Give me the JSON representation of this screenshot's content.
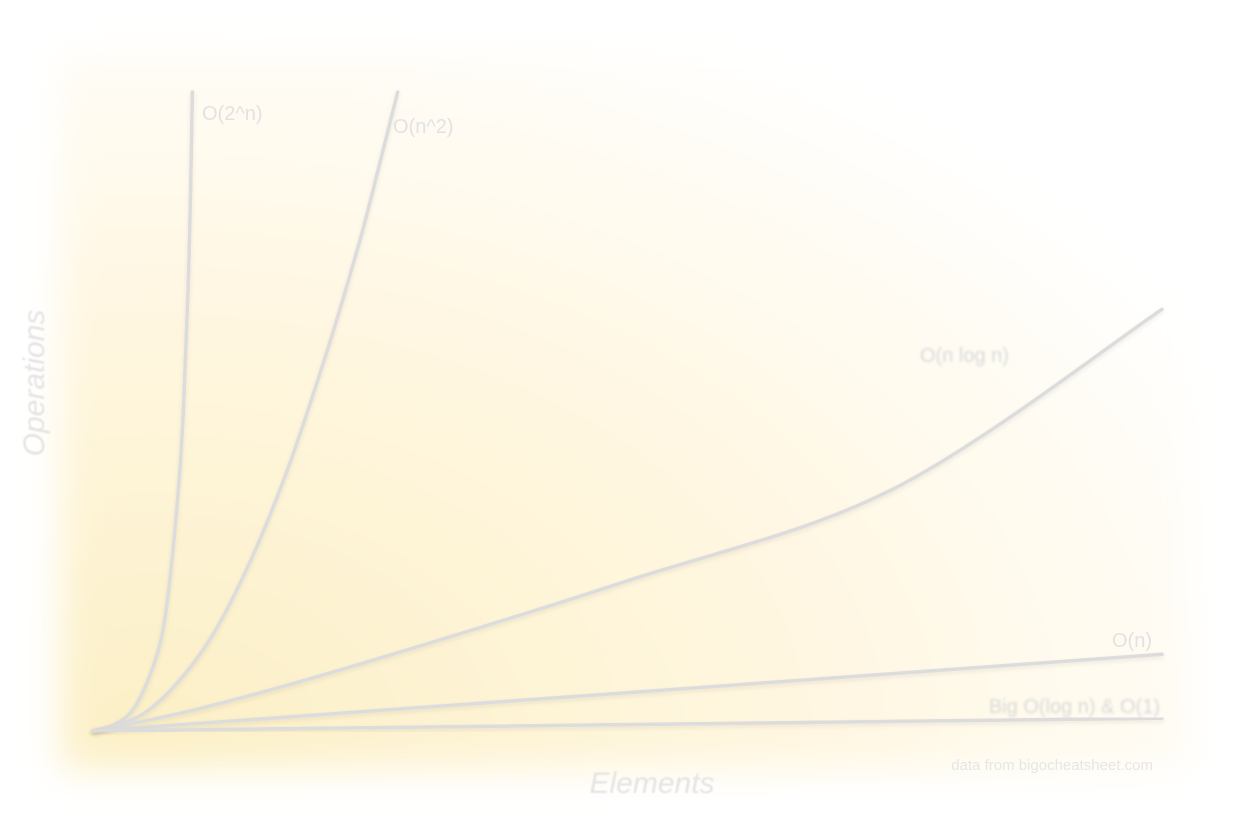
{
  "chart_data": {
    "type": "line",
    "xlabel": "Elements",
    "ylabel": "Operations",
    "source_note": "data from bigocheatsheet.com",
    "grid": false,
    "xlim": [
      0,
      100
    ],
    "ylim": [
      0,
      100
    ],
    "background_gradient": [
      "#fdf3d0",
      "#fffaf0",
      "#ffffff"
    ],
    "line_color": "#dcdcdc",
    "series": [
      {
        "name": "O(2^n)",
        "x": [
          0,
          2,
          4,
          6,
          7,
          8,
          8.5,
          9,
          9.3
        ],
        "y": [
          0,
          1,
          4,
          12,
          21,
          38,
          52,
          75,
          100
        ]
      },
      {
        "name": "O(n^2)",
        "x": [
          0,
          5,
          10,
          14,
          18,
          22,
          25,
          27,
          28.5
        ],
        "y": [
          0,
          3,
          12,
          24,
          40,
          60,
          77,
          90,
          100
        ]
      },
      {
        "name": "O(n log n)",
        "x": [
          0,
          10,
          25,
          50,
          75,
          100
        ],
        "y": [
          0,
          3.5,
          10.5,
          23.5,
          38,
          66
        ]
      },
      {
        "name": "O(n)",
        "x": [
          0,
          100
        ],
        "y": [
          0,
          12
        ]
      },
      {
        "name": "Big O(log n) & O(1)",
        "x": [
          0,
          100
        ],
        "y": [
          0,
          2
        ]
      }
    ]
  }
}
